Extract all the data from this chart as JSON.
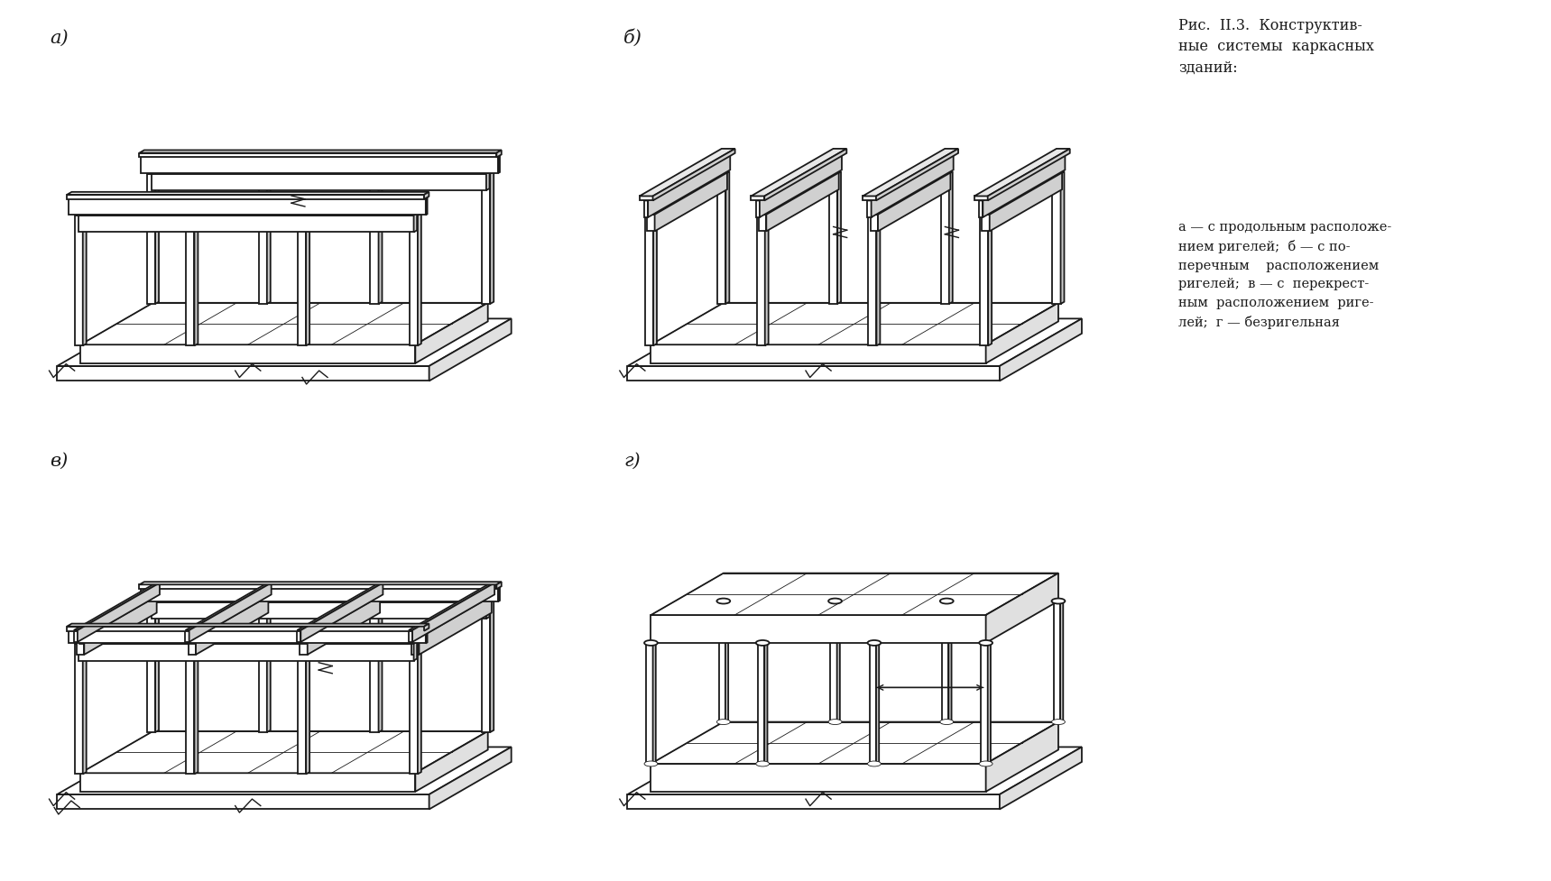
{
  "bg_color": "#ffffff",
  "line_color": "#1a1a1a",
  "title_text": "Рис.  II.3.  Конструктив-\nные  системы  каркасных\nзданий:",
  "caption_italic": "а",
  "caption_text": " — с продольным расположением ригелей; ",
  "caption_italic2": "б",
  "caption_text2": " — с поперечным расположением ригелей; ",
  "caption_italic3": "в",
  "caption_text3": " — с перекрестным расположением ригелей; ",
  "caption_italic4": "г",
  "caption_text4": " — безригельная",
  "labels": [
    "а)",
    "б)",
    "в)",
    "г)"
  ],
  "fig_width": 17.19,
  "fig_height": 9.78
}
